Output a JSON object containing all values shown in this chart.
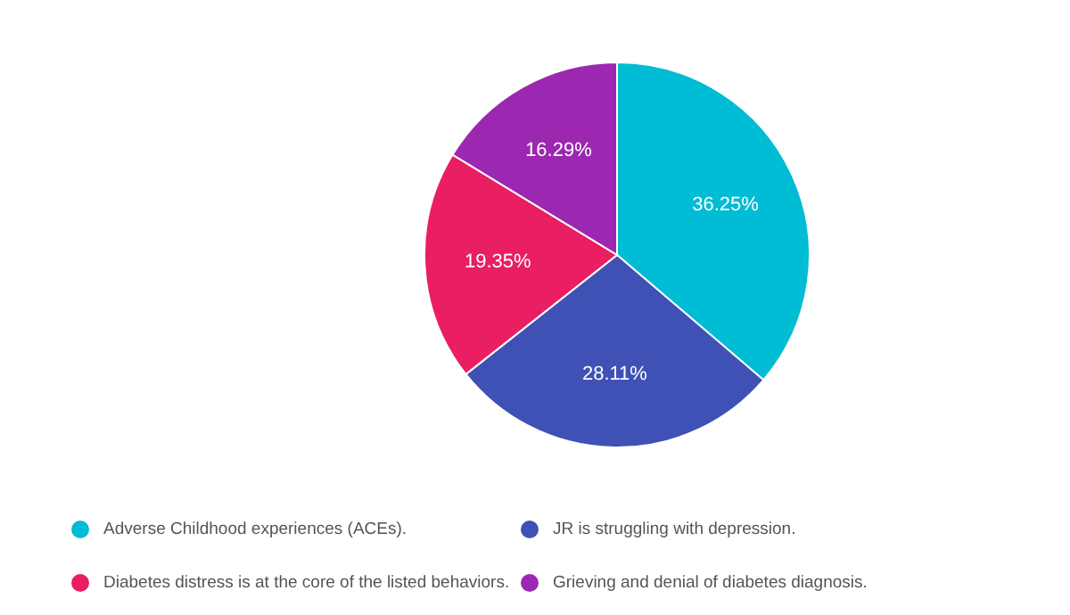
{
  "chart_data": {
    "type": "pie",
    "categories": [
      "Adverse Childhood experiences (ACEs).",
      "JR is struggling with depression.",
      "Diabetes distress is at the core of the listed behaviors.",
      "Grieving and denial of diabetes diagnosis."
    ],
    "values": [
      36.25,
      28.11,
      19.35,
      16.29
    ],
    "colors": [
      "#00bcd4",
      "#3f51b5",
      "#e91e63",
      "#9c27b0"
    ],
    "value_labels": [
      "36.25%",
      "28.11%",
      "19.35%",
      "16.29%"
    ],
    "legend": "bottom"
  }
}
